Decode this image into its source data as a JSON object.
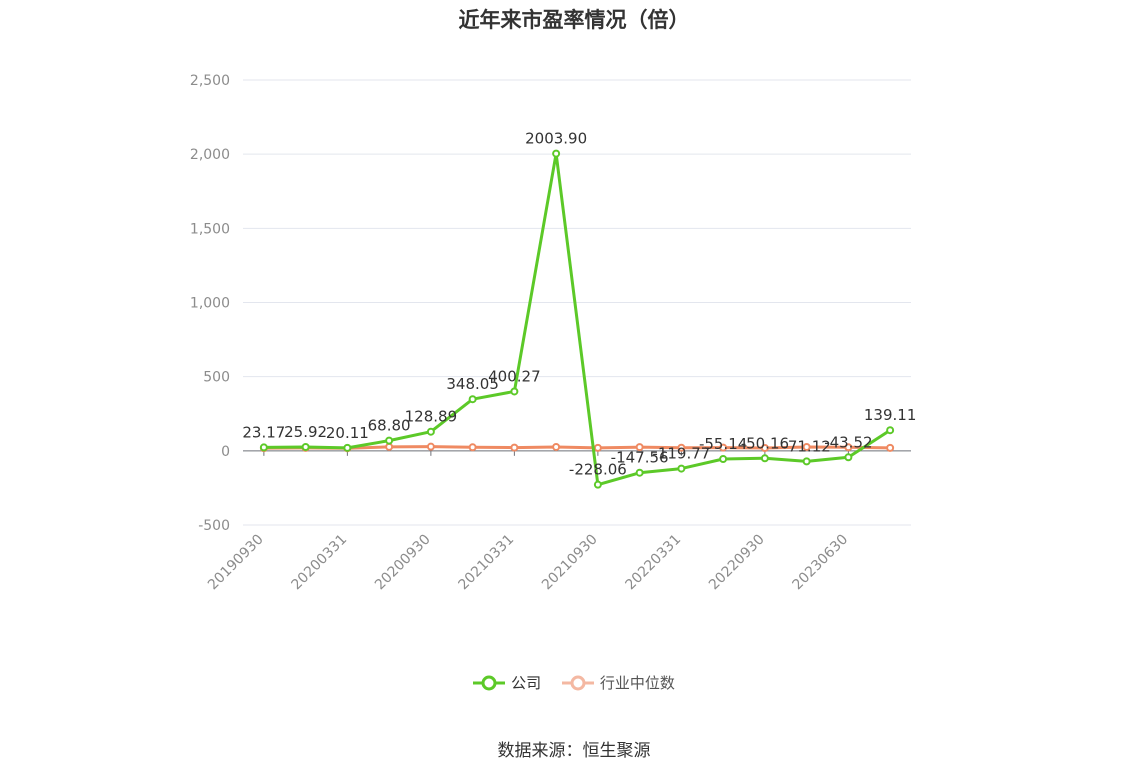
{
  "chart_data": {
    "type": "line",
    "title": "近年来市盈率情况（倍）",
    "ylim": [
      -500,
      2500
    ],
    "yticks": [
      -500,
      0,
      500,
      1000,
      1500,
      2000,
      2500
    ],
    "ytick_labels": [
      "-500",
      "0",
      "500",
      "1,000",
      "1,500",
      "2,000",
      "2,500"
    ],
    "x_tick_labels": [
      "20190930",
      "20200331",
      "20200930",
      "20210331",
      "20210930",
      "20220331",
      "20220930",
      "20230630"
    ],
    "x_tick_positions": [
      0,
      2,
      4,
      6,
      8,
      10,
      12,
      14
    ],
    "grid": true,
    "legend_position": "bottom",
    "series": [
      {
        "name": "公司",
        "color": "#5cc928",
        "values": [
          23.17,
          25.92,
          20.11,
          68.8,
          128.89,
          348.05,
          400.27,
          2003.9,
          -228.06,
          -147.56,
          -119.77,
          -55.14,
          -50.16,
          -71.12,
          -43.52,
          139.11
        ],
        "labels": [
          "23.17",
          "25.92",
          "20.11",
          "68.80",
          "128.89",
          "348.05",
          "400.27",
          "2003.90",
          "-228.06",
          "-147.56",
          "-119.77",
          "-55.14",
          "-50.16",
          "-71.12",
          "-43.52",
          "139.11"
        ]
      },
      {
        "name": "行业中位数",
        "color": "#ef8a62",
        "values": [
          18,
          20,
          17,
          27,
          28,
          24,
          22,
          26,
          20,
          25,
          21,
          22,
          19,
          26,
          24,
          20
        ]
      }
    ],
    "source": "数据来源：恒生聚源"
  }
}
